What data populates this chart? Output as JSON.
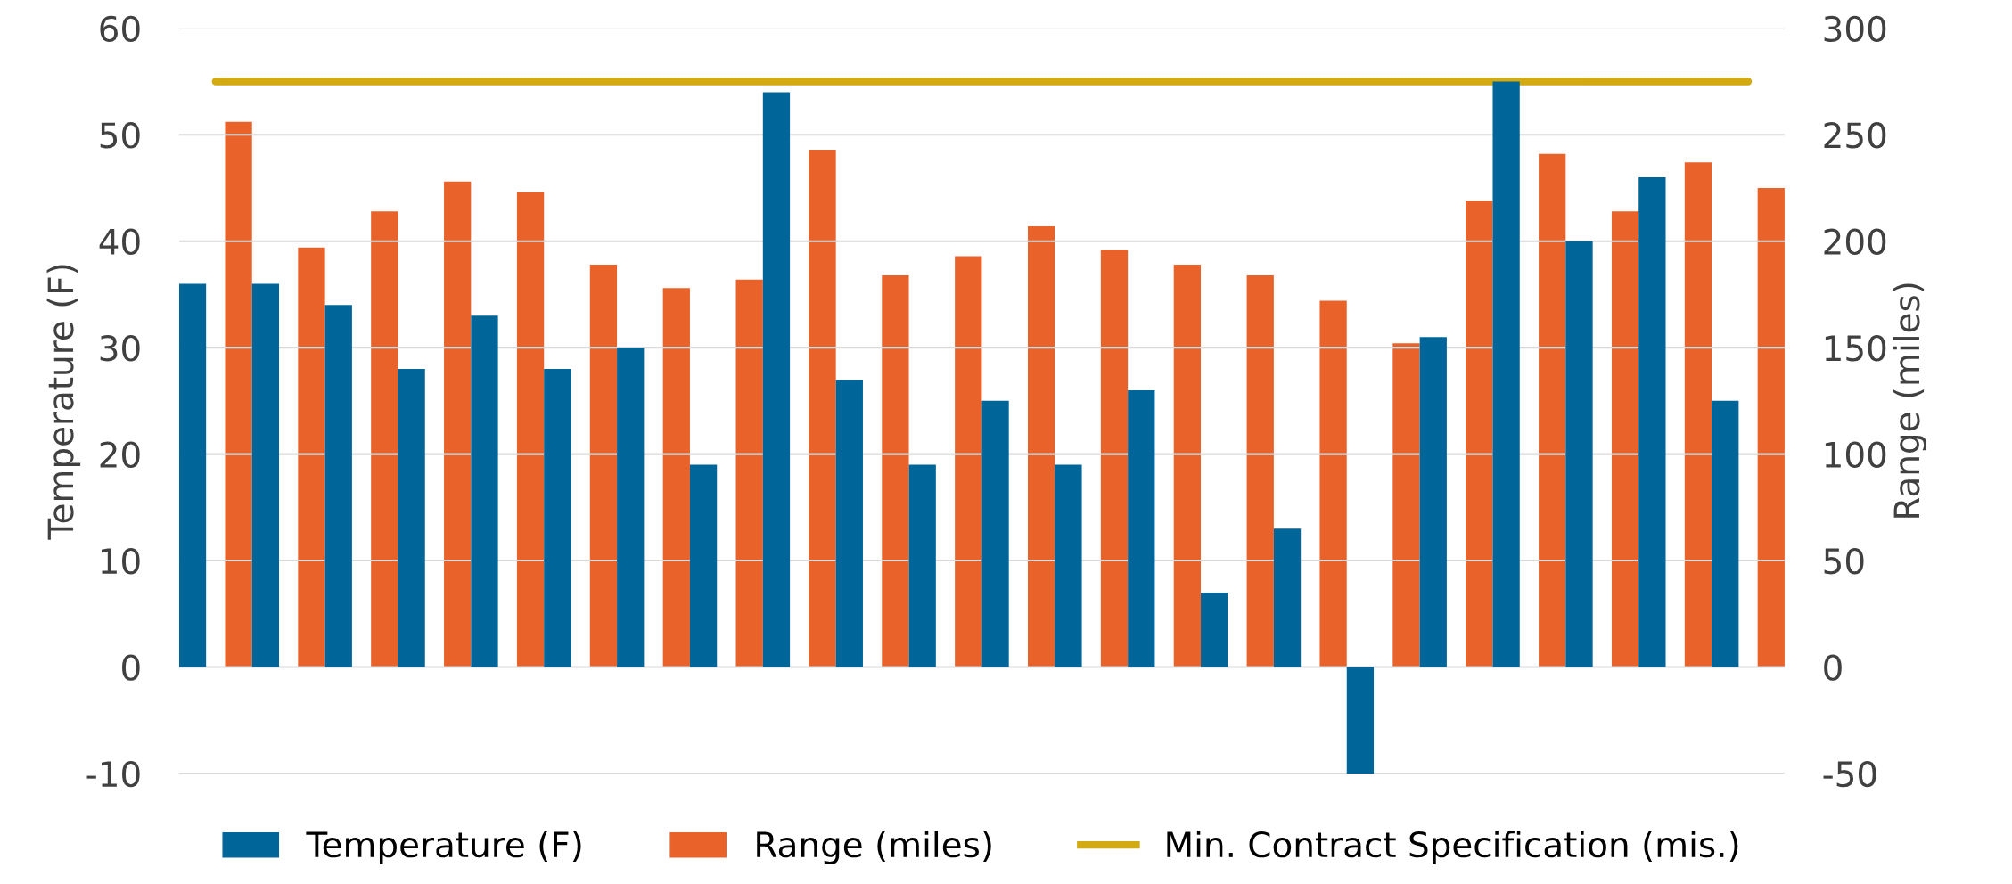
{
  "chart_data": {
    "type": "bar",
    "categories": [
      null,
      null,
      null,
      null,
      null,
      null,
      null,
      null,
      null,
      null,
      null,
      null,
      null,
      null,
      null,
      null,
      null,
      null,
      null,
      null,
      null,
      null
    ],
    "series": [
      {
        "name": "Temperature (F)",
        "color": "#00669a",
        "values": [
          36,
          36,
          34,
          28,
          33,
          28,
          30,
          19,
          54,
          27,
          19,
          25,
          19,
          26,
          7,
          13,
          -10,
          31,
          55,
          40,
          46,
          25
        ]
      },
      {
        "name": "Range (miles)",
        "color": "#e8622a",
        "axis": "y2",
        "values": [
          256,
          197,
          214,
          228,
          223,
          189,
          178,
          182,
          243,
          184,
          193,
          207,
          196,
          189,
          184,
          172,
          152,
          219,
          241,
          214,
          237,
          225
        ]
      },
      {
        "name": "Min. Contract Specification (mis.)",
        "color": "#d4aa12",
        "type": "line",
        "axis": "y2",
        "values": [
          275,
          275,
          275,
          275,
          275,
          275,
          275,
          275,
          275,
          275,
          275,
          275,
          275,
          275,
          275,
          275,
          275,
          275,
          275,
          275,
          275,
          275
        ]
      }
    ],
    "ylabel": "Temperature (F)",
    "y2label": "Range (miles)",
    "ylim": [
      -10,
      60
    ],
    "yticks": [
      -10,
      0,
      10,
      20,
      30,
      40,
      50,
      60
    ],
    "y2lim": [
      -50,
      300
    ],
    "y2ticks": [
      -50,
      0,
      50,
      100,
      150,
      200,
      250,
      300
    ],
    "grid": "y",
    "legend": "bottom"
  }
}
